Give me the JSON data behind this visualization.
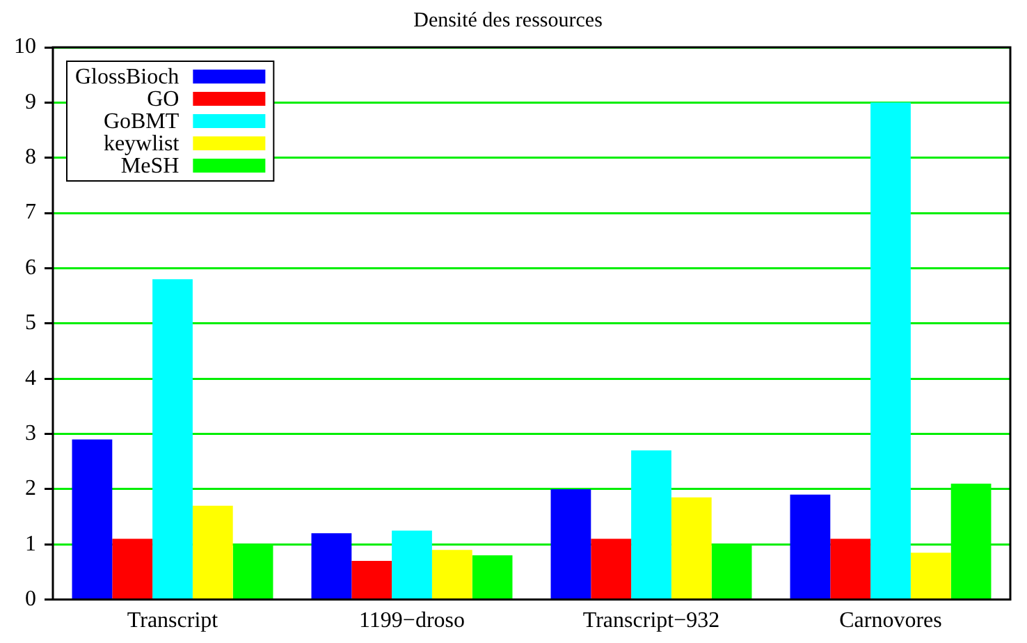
{
  "chart_data": {
    "type": "bar",
    "title": "Densité des ressources",
    "categories": [
      "Transcript",
      "1199−droso",
      "Transcript−932",
      "Carnovores"
    ],
    "series": [
      {
        "name": "GlossBioch",
        "color": "#0000ff",
        "values": [
          2.9,
          1.2,
          2.0,
          1.9
        ]
      },
      {
        "name": "GO",
        "color": "#ff0000",
        "values": [
          1.1,
          0.7,
          1.1,
          1.1
        ]
      },
      {
        "name": "GoBMT",
        "color": "#00ffff",
        "values": [
          5.8,
          1.25,
          2.7,
          9.0
        ]
      },
      {
        "name": "keywlist",
        "color": "#ffff00",
        "values": [
          1.7,
          0.9,
          1.85,
          0.85
        ]
      },
      {
        "name": "MeSH",
        "color": "#00ff00",
        "values": [
          1.0,
          0.8,
          1.0,
          2.1
        ]
      }
    ],
    "ylim": [
      0,
      10
    ],
    "yticks": [
      0,
      1,
      2,
      3,
      4,
      5,
      6,
      7,
      8,
      9,
      10
    ],
    "grid": "y",
    "legend": "top left"
  }
}
